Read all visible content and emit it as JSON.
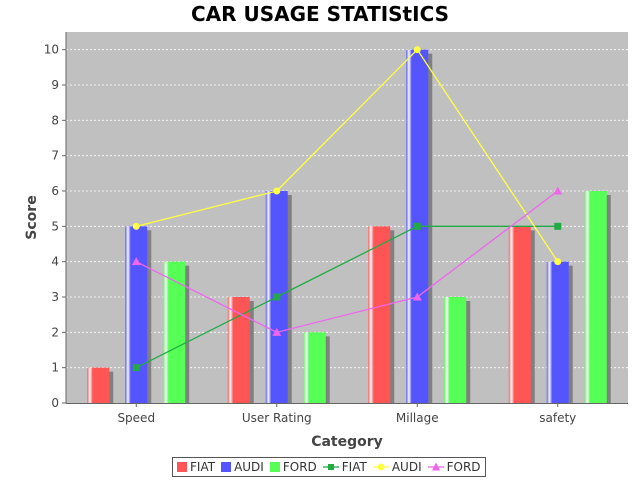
{
  "chart_data": {
    "type": "bar",
    "title": "CAR USAGE STATIStICS",
    "xlabel": "Category",
    "ylabel": "Score",
    "categories": [
      "Speed",
      "User Rating",
      "Millage",
      "safety"
    ],
    "ylim": [
      0,
      10.5
    ],
    "yticks": [
      0,
      1,
      2,
      3,
      4,
      5,
      6,
      7,
      8,
      9,
      10
    ],
    "grid": true,
    "legend_position": "bottom",
    "bar_series": [
      {
        "name": "FIAT",
        "values": [
          1,
          3,
          5,
          5
        ],
        "color": "#ff5555"
      },
      {
        "name": "AUDI",
        "values": [
          5,
          6,
          10,
          4
        ],
        "color": "#5555ff"
      },
      {
        "name": "FORD",
        "values": [
          4,
          2,
          3,
          6
        ],
        "color": "#55ff55"
      }
    ],
    "line_series": [
      {
        "name": "FIAT",
        "values": [
          1,
          3,
          5,
          5
        ],
        "color": "#22aa44",
        "marker": "square"
      },
      {
        "name": "AUDI",
        "values": [
          5,
          6,
          10,
          4
        ],
        "color": "#ffff44",
        "marker": "circle"
      },
      {
        "name": "FORD",
        "values": [
          4,
          2,
          3,
          6
        ],
        "color": "#ee66ee",
        "marker": "triangle"
      }
    ]
  }
}
